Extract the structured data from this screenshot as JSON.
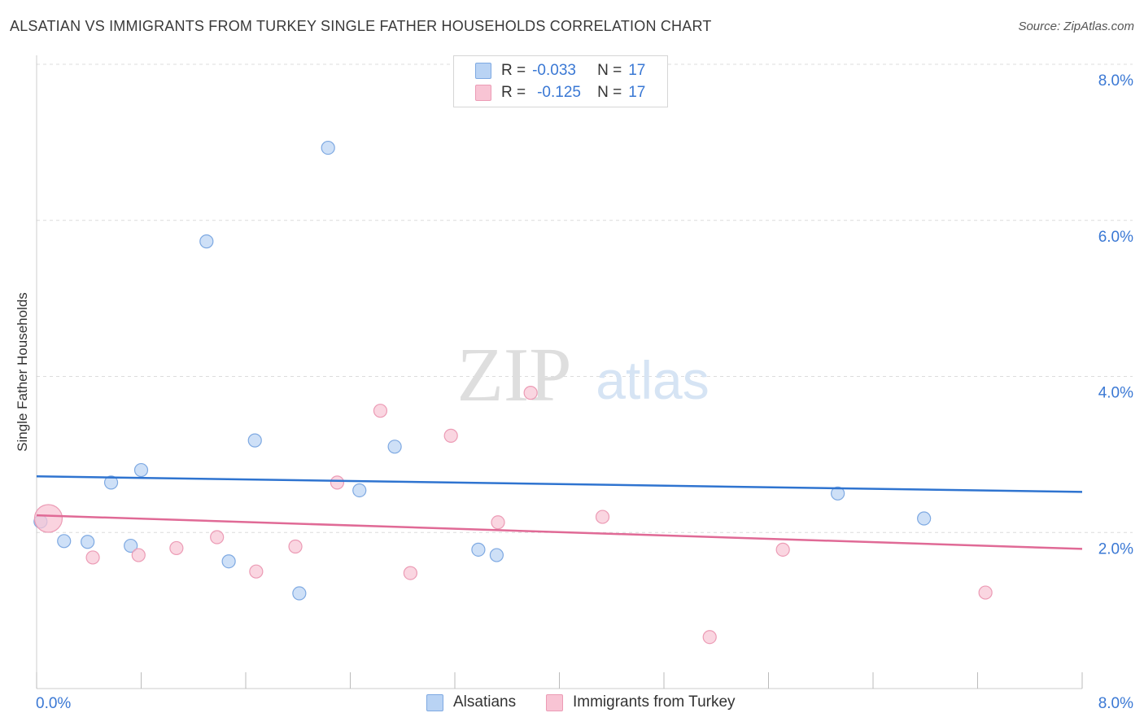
{
  "header": {
    "title": "ALSATIAN VS IMMIGRANTS FROM TURKEY SINGLE FATHER HOUSEHOLDS CORRELATION CHART",
    "source": "Source: ZipAtlas.com"
  },
  "watermark": {
    "zip": "ZIP",
    "atlas": "atlas"
  },
  "colors": {
    "alsatian_fill": "#b9d3f4",
    "alsatian_stroke": "#7ea9e2",
    "alsatian_line": "#2f74d0",
    "turkey_fill": "#f8c4d4",
    "turkey_stroke": "#ec9bb5",
    "turkey_line": "#e06a96",
    "axis_label": "#3a78d4",
    "grid": "#dcdcdc"
  },
  "legend": {
    "rows": [
      {
        "r_label": "R =",
        "r_value": "-0.033",
        "n_label": "N =",
        "n_value": "17"
      },
      {
        "r_label": "R =",
        "r_value": "-0.125",
        "n_label": "N =",
        "n_value": "17"
      }
    ]
  },
  "bottom_legend": {
    "items": [
      {
        "label": "Alsatians"
      },
      {
        "label": "Immigrants from Turkey"
      }
    ]
  },
  "chart_data": {
    "type": "scatter",
    "title": "ALSATIAN VS IMMIGRANTS FROM TURKEY SINGLE FATHER HOUSEHOLDS CORRELATION CHART",
    "xlabel": "",
    "ylabel": "Single Father Households",
    "xlim": [
      0,
      8
    ],
    "ylim": [
      0,
      8
    ],
    "x_tick_labels": [
      "0.0%",
      "8.0%"
    ],
    "y_ticks": [
      2,
      4,
      6,
      8
    ],
    "y_tick_labels": [
      "2.0%",
      "4.0%",
      "6.0%",
      "8.0%"
    ],
    "grid": true,
    "legend_position": "top-center",
    "series": [
      {
        "name": "Alsatians",
        "r": -0.033,
        "n": 17,
        "points": [
          [
            0.03,
            2.14
          ],
          [
            0.21,
            1.89
          ],
          [
            0.39,
            1.88
          ],
          [
            0.57,
            2.64
          ],
          [
            0.72,
            1.83
          ],
          [
            0.8,
            2.8
          ],
          [
            1.3,
            5.73
          ],
          [
            1.47,
            1.63
          ],
          [
            1.67,
            3.18
          ],
          [
            2.01,
            1.22
          ],
          [
            2.23,
            6.93
          ],
          [
            2.47,
            2.54
          ],
          [
            2.74,
            3.1
          ],
          [
            3.38,
            1.78
          ],
          [
            3.52,
            1.71
          ],
          [
            6.13,
            2.5
          ],
          [
            6.79,
            2.18
          ]
        ],
        "trend": [
          [
            0,
            2.72
          ],
          [
            8,
            2.52
          ]
        ]
      },
      {
        "name": "Immigrants from Turkey",
        "r": -0.125,
        "n": 17,
        "points": [
          [
            0.09,
            2.18
          ],
          [
            0.43,
            1.68
          ],
          [
            0.78,
            1.71
          ],
          [
            1.07,
            1.8
          ],
          [
            1.38,
            1.94
          ],
          [
            1.68,
            1.5
          ],
          [
            1.98,
            1.82
          ],
          [
            2.3,
            2.64
          ],
          [
            2.63,
            3.56
          ],
          [
            2.86,
            1.48
          ],
          [
            3.17,
            3.24
          ],
          [
            3.53,
            2.13
          ],
          [
            3.78,
            3.79
          ],
          [
            4.33,
            2.2
          ],
          [
            5.15,
            0.66
          ],
          [
            5.71,
            1.78
          ],
          [
            7.26,
            1.23
          ]
        ],
        "trend": [
          [
            0,
            2.22
          ],
          [
            8,
            1.79
          ]
        ]
      }
    ]
  }
}
